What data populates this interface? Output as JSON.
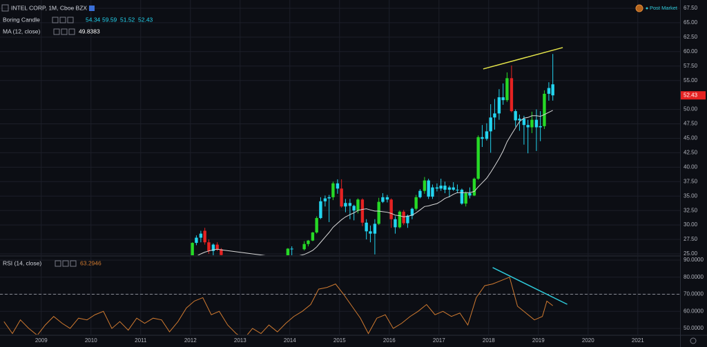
{
  "chart_data": [
    {
      "type": "candlestick",
      "title": "INTEL CORP, 1M, Cboe BZX",
      "indicator": "Boring Candle",
      "status": "Post Market",
      "x": [
        2012.04,
        2012.12,
        2012.21,
        2012.29,
        2012.37,
        2012.46,
        2012.54,
        2012.62,
        2013.96,
        2014.04,
        2014.29,
        2014.37,
        2014.46,
        2014.54,
        2014.62,
        2014.71,
        2014.79,
        2014.87,
        2014.96,
        2015.04,
        2015.12,
        2015.21,
        2015.29,
        2015.37,
        2015.46,
        2015.54,
        2015.62,
        2015.71,
        2015.79,
        2015.87,
        2015.96,
        2016.04,
        2016.12,
        2016.21,
        2016.29,
        2016.37,
        2016.46,
        2016.54,
        2016.62,
        2016.71,
        2016.79,
        2016.87,
        2016.96,
        2017.04,
        2017.12,
        2017.21,
        2017.29,
        2017.37,
        2017.46,
        2017.54,
        2017.62,
        2017.71,
        2017.79,
        2017.87,
        2017.96,
        2018.04,
        2018.12,
        2018.21,
        2018.29,
        2018.37,
        2018.46,
        2018.54,
        2018.62,
        2018.71,
        2018.79,
        2018.87,
        2018.96,
        2019.04,
        2019.12,
        2019.21,
        2019.29
      ],
      "open": [
        24.3,
        26.9,
        27.8,
        29.0,
        27.0,
        25.5,
        26.6,
        25.8,
        24.5,
        25.9,
        25.8,
        26.7,
        27.3,
        28.7,
        31.2,
        34.1,
        34.6,
        34.8,
        37.2,
        36.3,
        33.2,
        33.8,
        33.3,
        32.5,
        34.4,
        30.4,
        28.9,
        28.5,
        30.2,
        34.0,
        34.8,
        34.4,
        31.0,
        29.6,
        32.3,
        30.3,
        31.6,
        32.8,
        34.8,
        35.9,
        37.7,
        34.9,
        36.5,
        36.3,
        36.8,
        36.1,
        36.5,
        36.1,
        36.1,
        33.7,
        35.5,
        35.1,
        38.0,
        45.2,
        44.9,
        46.2,
        48.6,
        49.3,
        52.1,
        51.6,
        55.4,
        49.7,
        48.1,
        48.4,
        47.3,
        46.9,
        48.2,
        46.9,
        47.1,
        52.7,
        54.34
      ],
      "high": [
        27.0,
        28.2,
        29.0,
        29.5,
        27.5,
        26.8,
        27.0,
        26.0,
        26.0,
        26.3,
        27.2,
        27.4,
        28.8,
        31.5,
        34.8,
        35.1,
        35.2,
        37.5,
        37.9,
        37.9,
        34.5,
        34.5,
        33.5,
        34.6,
        34.6,
        31.0,
        29.9,
        31.0,
        34.7,
        35.5,
        35.2,
        34.6,
        31.5,
        32.5,
        32.6,
        31.8,
        33.0,
        35.2,
        36.2,
        38.3,
        38.0,
        37.0,
        37.2,
        38.0,
        37.5,
        36.8,
        37.4,
        37.0,
        36.3,
        35.8,
        36.5,
        38.2,
        45.5,
        47.3,
        47.6,
        50.9,
        51.8,
        53.5,
        54.5,
        56.4,
        57.6,
        50.0,
        49.1,
        48.9,
        48.2,
        49.6,
        50.0,
        49.7,
        53.3,
        54.7,
        59.59
      ],
      "low": [
        24.0,
        26.5,
        27.0,
        26.6,
        25.0,
        24.5,
        25.5,
        24.5,
        24.2,
        24.3,
        25.6,
        26.3,
        27.2,
        28.5,
        31.0,
        33.2,
        30.5,
        34.3,
        35.4,
        33.0,
        32.2,
        31.0,
        30.8,
        32.0,
        29.8,
        27.5,
        27.0,
        24.9,
        30.0,
        33.8,
        33.9,
        29.5,
        28.5,
        29.4,
        30.0,
        29.5,
        31.0,
        32.5,
        34.6,
        35.4,
        34.5,
        34.5,
        35.8,
        35.9,
        35.5,
        34.8,
        35.9,
        35.5,
        33.5,
        33.2,
        34.6,
        35.0,
        37.8,
        43.5,
        44.6,
        42.5,
        46.5,
        48.2,
        50.8,
        51.3,
        49.5,
        47.0,
        46.3,
        43.9,
        42.4,
        45.9,
        42.8,
        44.5,
        46.6,
        51.5,
        51.52
      ],
      "close": [
        26.9,
        27.8,
        28.5,
        27.0,
        25.5,
        26.6,
        25.8,
        24.8,
        25.9,
        25.8,
        26.7,
        27.3,
        28.7,
        31.2,
        34.1,
        34.6,
        34.8,
        37.2,
        36.3,
        33.2,
        33.8,
        33.3,
        32.5,
        34.4,
        30.4,
        28.9,
        28.5,
        30.2,
        34.0,
        34.8,
        34.4,
        31.0,
        29.6,
        32.3,
        30.3,
        31.6,
        32.8,
        34.8,
        35.9,
        37.7,
        34.9,
        36.5,
        36.3,
        36.8,
        36.1,
        36.5,
        36.1,
        36.1,
        33.7,
        35.5,
        35.1,
        38.0,
        45.2,
        44.9,
        46.2,
        48.6,
        49.3,
        52.1,
        51.6,
        55.4,
        49.7,
        48.1,
        48.4,
        47.3,
        46.9,
        48.2,
        46.9,
        47.1,
        52.7,
        53.7,
        52.43
      ],
      "colors": [
        "#26d926",
        "#23d5f0",
        "#23d5f0",
        "#e52222",
        "#e52222",
        "#23d5f0",
        "#e52222",
        "#e52222",
        "#26d926",
        "#23d5f0",
        "#26d926",
        "#26d926",
        "#26d926",
        "#26d926",
        "#23d5f0",
        "#23d5f0",
        "#23d5f0",
        "#26d926",
        "#23d5f0",
        "#e52222",
        "#23d5f0",
        "#23d5f0",
        "#23d5f0",
        "#26d926",
        "#e52222",
        "#23d5f0",
        "#23d5f0",
        "#23d5f0",
        "#26d926",
        "#23d5f0",
        "#23d5f0",
        "#e52222",
        "#23d5f0",
        "#26d926",
        "#e52222",
        "#23d5f0",
        "#23d5f0",
        "#26d926",
        "#23d5f0",
        "#26d926",
        "#23d5f0",
        "#23d5f0",
        "#23d5f0",
        "#23d5f0",
        "#23d5f0",
        "#23d5f0",
        "#23d5f0",
        "#23d5f0",
        "#23d5f0",
        "#26d926",
        "#23d5f0",
        "#26d926",
        "#26d926",
        "#23d5f0",
        "#23d5f0",
        "#23d5f0",
        "#23d5f0",
        "#23d5f0",
        "#23d5f0",
        "#26d926",
        "#e52222",
        "#23d5f0",
        "#23d5f0",
        "#23d5f0",
        "#23d5f0",
        "#26d926",
        "#23d5f0",
        "#23d5f0",
        "#26d926",
        "#23d5f0",
        "#23d5f0"
      ],
      "last_price_color": "#e52222",
      "ma": {
        "name": "MA (12, close)",
        "color": "#d9d9d9",
        "values": [
          24.2,
          24.6,
          25.0,
          25.3,
          25.5,
          25.7,
          25.8,
          25.7,
          24.2,
          24.4,
          24.9,
          25.2,
          25.6,
          26.2,
          27.0,
          27.9,
          28.7,
          29.6,
          30.3,
          30.9,
          31.4,
          31.8,
          32.1,
          32.5,
          32.7,
          32.8,
          32.6,
          32.4,
          32.4,
          32.3,
          32.2,
          32.0,
          31.7,
          31.6,
          31.4,
          31.5,
          31.7,
          32.1,
          32.6,
          33.2,
          33.3,
          33.5,
          33.7,
          34.1,
          34.6,
          34.9,
          35.3,
          35.6,
          35.6,
          35.6,
          35.6,
          35.8,
          36.6,
          37.3,
          38.1,
          39.1,
          40.2,
          41.5,
          42.8,
          44.4,
          45.7,
          46.8,
          47.9,
          48.5,
          48.6,
          48.9,
          48.9,
          48.8,
          49.1,
          49.5,
          49.8383
        ]
      },
      "drawings": [
        {
          "x": [
            2017.89,
            2019.49
          ],
          "values": [
            57.0,
            60.7
          ],
          "color": "#e6e64a"
        }
      ],
      "xlim": [
        2008.17,
        2021.85
      ],
      "ylim": [
        24.76,
        68.93
      ],
      "xticks": [
        2009,
        2010,
        2011,
        2012,
        2013,
        2014,
        2015,
        2016,
        2017,
        2018,
        2019,
        2020,
        2021
      ],
      "yticks": [
        {
          "value": 25,
          "label": "25.00"
        },
        {
          "value": 27.5,
          "label": "27.50"
        },
        {
          "value": 30,
          "label": "30.00"
        },
        {
          "value": 32.5,
          "label": "32.50"
        },
        {
          "value": 35,
          "label": "35.00"
        },
        {
          "value": 37.5,
          "label": "37.50"
        },
        {
          "value": 40,
          "label": "40.00"
        },
        {
          "value": 42.5,
          "label": "42.50"
        },
        {
          "value": 45,
          "label": "45.00"
        },
        {
          "value": 47.5,
          "label": "47.50"
        },
        {
          "value": 50,
          "label": "50.00"
        },
        {
          "value": 55,
          "label": "55.00"
        },
        {
          "value": 57.5,
          "label": "57.50"
        },
        {
          "value": 60,
          "label": "60.00"
        },
        {
          "value": 62.5,
          "label": "62.50"
        },
        {
          "value": 65,
          "label": "65.00"
        },
        {
          "value": 67.5,
          "label": "67.50"
        }
      ],
      "grid": true
    },
    {
      "type": "line",
      "series": [
        {
          "name": "RSI (14, close)",
          "color": "#d07a30",
          "x": [
            2008.25,
            2008.42,
            2008.58,
            2008.75,
            2008.92,
            2009.08,
            2009.25,
            2009.42,
            2009.58,
            2009.75,
            2009.92,
            2010.08,
            2010.25,
            2010.42,
            2010.58,
            2010.75,
            2010.92,
            2011.08,
            2011.25,
            2011.42,
            2011.58,
            2011.75,
            2011.92,
            2012.08,
            2012.25,
            2012.42,
            2012.58,
            2012.75,
            2012.92,
            2013.08,
            2013.25,
            2013.42,
            2013.58,
            2013.75,
            2013.92,
            2014.08,
            2014.25,
            2014.42,
            2014.58,
            2014.75,
            2014.92,
            2015.08,
            2015.25,
            2015.42,
            2015.58,
            2015.75,
            2015.92,
            2016.08,
            2016.25,
            2016.42,
            2016.58,
            2016.75,
            2016.92,
            2017.08,
            2017.25,
            2017.42,
            2017.58,
            2017.75,
            2017.92,
            2018.08,
            2018.25,
            2018.42,
            2018.58,
            2018.75,
            2018.92,
            2019.08,
            2019.17,
            2019.29
          ],
          "values": [
            54,
            47,
            55,
            50,
            46,
            52,
            57,
            53,
            50,
            56,
            55,
            58,
            60,
            50,
            54,
            49,
            56,
            53,
            56,
            55,
            48,
            54,
            62,
            66,
            68,
            58,
            60,
            52,
            47,
            44,
            50,
            47,
            52,
            48,
            53,
            57,
            60,
            64,
            73,
            74,
            76,
            70,
            63,
            56,
            47,
            56,
            58,
            50,
            53,
            57,
            60,
            64,
            58,
            60,
            57,
            59,
            52,
            68,
            75,
            76,
            78,
            80,
            63,
            59,
            55,
            57,
            66,
            63.2946
          ]
        }
      ],
      "levels": [
        70
      ],
      "drawings": [
        {
          "x": [
            2018.08,
            2019.58
          ],
          "values": [
            85.6,
            64.1
          ],
          "color": "#2ec8d8"
        }
      ],
      "xlim": [
        2008.17,
        2021.85
      ],
      "ylim": [
        46.4,
        92.0
      ],
      "xticks": [
        2009,
        2010,
        2011,
        2012,
        2013,
        2014,
        2015,
        2016,
        2017,
        2018,
        2019,
        2020,
        2021
      ],
      "yticks": [
        {
          "value": 50,
          "label": "50.0000"
        },
        {
          "value": 60,
          "label": "60.0000"
        },
        {
          "value": 70,
          "label": "70.0000"
        },
        {
          "value": 80,
          "label": "80.0000"
        },
        {
          "value": 90,
          "label": "90.0000"
        }
      ],
      "grid": true
    }
  ]
}
